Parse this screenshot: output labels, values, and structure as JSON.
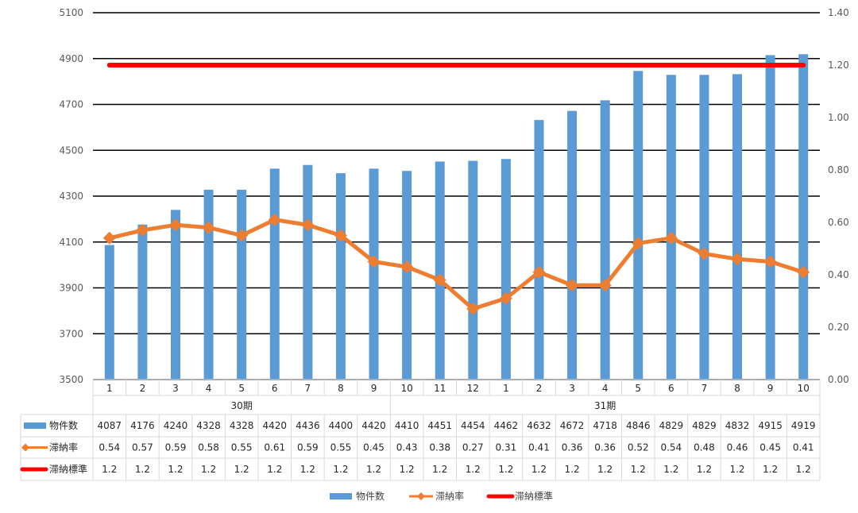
{
  "chart_data": {
    "type": "bar",
    "categories": [
      "1",
      "2",
      "3",
      "4",
      "5",
      "6",
      "7",
      "8",
      "9",
      "10",
      "11",
      "12",
      "1",
      "2",
      "3",
      "4",
      "5",
      "6",
      "7",
      "8",
      "9",
      "10"
    ],
    "groups": [
      {
        "label": "30期",
        "count": 9
      },
      {
        "label": "31期",
        "count": 13
      }
    ],
    "series": [
      {
        "name": "物件数",
        "type": "bar",
        "axis": "left",
        "color": "#5B9BD5",
        "values": [
          4087,
          4176,
          4240,
          4328,
          4328,
          4420,
          4436,
          4400,
          4420,
          4410,
          4451,
          4454,
          4462,
          4632,
          4672,
          4718,
          4846,
          4829,
          4829,
          4832,
          4915,
          4919
        ]
      },
      {
        "name": "滞納率",
        "type": "line",
        "axis": "right",
        "color": "#ED7D31",
        "marker": "diamond",
        "values": [
          0.54,
          0.57,
          0.59,
          0.58,
          0.55,
          0.61,
          0.59,
          0.55,
          0.45,
          0.43,
          0.38,
          0.27,
          0.31,
          0.41,
          0.36,
          0.36,
          0.52,
          0.54,
          0.48,
          0.46,
          0.45,
          0.41
        ]
      },
      {
        "name": "滞納標準",
        "type": "line",
        "axis": "right",
        "color": "#FF0000",
        "values": [
          1.2,
          1.2,
          1.2,
          1.2,
          1.2,
          1.2,
          1.2,
          1.2,
          1.2,
          1.2,
          1.2,
          1.2,
          1.2,
          1.2,
          1.2,
          1.2,
          1.2,
          1.2,
          1.2,
          1.2,
          1.2,
          1.2
        ]
      }
    ],
    "y_left": {
      "min": 3500,
      "max": 5100,
      "ticks": [
        "3500",
        "3700",
        "3900",
        "4100",
        "4300",
        "4500",
        "4700",
        "4900",
        "5100"
      ]
    },
    "y_right": {
      "min": 0,
      "max": 1.4,
      "ticks": [
        "0.00",
        "0.20",
        "0.40",
        "0.60",
        "0.80",
        "1.00",
        "1.20",
        "1.40"
      ]
    },
    "data_table": true,
    "legend_position": "bottom",
    "grid": true
  }
}
